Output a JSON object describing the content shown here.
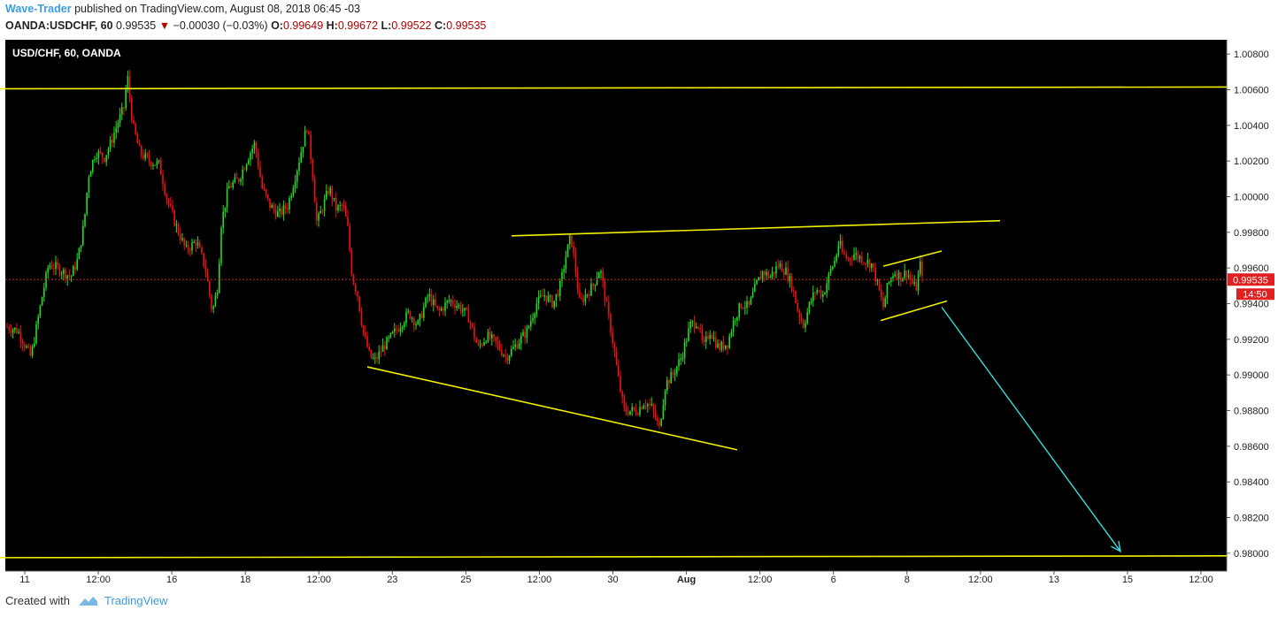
{
  "header": {
    "author": "Wave-Trader",
    "published_text": "published on TradingView.com, August 08, 2018 06:45 -03",
    "symbol": "OANDA:USDCHF, 60",
    "last": "0.99535",
    "change": "−0.00030 (−0.03%)",
    "o_label": "O:",
    "o_value": "0.99649",
    "h_label": "H:",
    "h_value": "0.99672",
    "l_label": "L:",
    "l_value": "0.99522",
    "c_label": "C:",
    "c_value": "0.99535"
  },
  "footer": {
    "created_with": "Created with",
    "brand": "TradingView"
  },
  "chart_data": {
    "type": "candlestick",
    "title": "USD/CHF, 60, OANDA",
    "ylim": [
      0.979,
      1.0088
    ],
    "y_ticks": [
      "1.00800",
      "1.00600",
      "1.00400",
      "1.00200",
      "1.00000",
      "0.99800",
      "0.99600",
      "0.99400",
      "0.99200",
      "0.99000",
      "0.98800",
      "0.98600",
      "0.98400",
      "0.98200",
      "0.98000"
    ],
    "x_ticks": [
      "11",
      "12:00",
      "16",
      "18",
      "12:00",
      "23",
      "25",
      "12:00",
      "30",
      "Aug",
      "12:00",
      "6",
      "8",
      "12:00",
      "13",
      "15",
      "12:00"
    ],
    "last_price_label": "0.99535",
    "countdown_label": "14:50",
    "last_price": 0.99535,
    "colors": {
      "background": "#000000",
      "up": "#22dd22",
      "down": "#ee1111",
      "trendline": "#f0f000",
      "arrow": "#33dddd",
      "price_line": "#cc2222"
    },
    "price_path": [
      [
        0,
        0.9928
      ],
      [
        20,
        0.9925
      ],
      [
        35,
        0.991
      ],
      [
        48,
        0.9945
      ],
      [
        55,
        0.9962
      ],
      [
        65,
        0.996
      ],
      [
        80,
        0.9955
      ],
      [
        88,
        0.9965
      ],
      [
        95,
        0.9985
      ],
      [
        100,
        1.0012
      ],
      [
        108,
        1.0025
      ],
      [
        118,
        1.0022
      ],
      [
        125,
        1.003
      ],
      [
        132,
        1.004
      ],
      [
        140,
        1.005
      ],
      [
        144,
        1.0068
      ],
      [
        150,
        1.004
      ],
      [
        158,
        1.0025
      ],
      [
        168,
        1.002
      ],
      [
        180,
        1.0018
      ],
      [
        188,
        1.0
      ],
      [
        198,
        0.9985
      ],
      [
        210,
        0.997
      ],
      [
        222,
        0.9975
      ],
      [
        232,
        0.996
      ],
      [
        240,
        0.9935
      ],
      [
        246,
        0.995
      ],
      [
        250,
        0.9985
      ],
      [
        258,
        1.0005
      ],
      [
        270,
        1.001
      ],
      [
        280,
        1.0022
      ],
      [
        288,
        1.003
      ],
      [
        296,
        1.0005
      ],
      [
        305,
        0.9995
      ],
      [
        315,
        0.999
      ],
      [
        325,
        0.9995
      ],
      [
        333,
        1.001
      ],
      [
        340,
        1.0025
      ],
      [
        347,
        1.004
      ],
      [
        353,
        1.0015
      ],
      [
        358,
        0.9985
      ],
      [
        365,
        0.9995
      ],
      [
        372,
        1.0005
      ],
      [
        380,
        0.9993
      ],
      [
        388,
        0.9995
      ],
      [
        393,
        0.9982
      ],
      [
        398,
        0.9955
      ],
      [
        404,
        0.9945
      ],
      [
        410,
        0.9925
      ],
      [
        418,
        0.991
      ],
      [
        424,
        0.9908
      ],
      [
        432,
        0.9915
      ],
      [
        440,
        0.992
      ],
      [
        452,
        0.9928
      ],
      [
        462,
        0.9935
      ],
      [
        472,
        0.9928
      ],
      [
        484,
        0.9945
      ],
      [
        495,
        0.9935
      ],
      [
        508,
        0.9942
      ],
      [
        520,
        0.9938
      ],
      [
        530,
        0.9932
      ],
      [
        540,
        0.9915
      ],
      [
        550,
        0.9922
      ],
      [
        560,
        0.9918
      ],
      [
        572,
        0.991
      ],
      [
        585,
        0.9918
      ],
      [
        596,
        0.9925
      ],
      [
        606,
        0.994
      ],
      [
        615,
        0.9945
      ],
      [
        625,
        0.994
      ],
      [
        633,
        0.995
      ],
      [
        640,
        0.9968
      ],
      [
        645,
        0.9978
      ],
      [
        650,
        0.996
      ],
      [
        655,
        0.994
      ],
      [
        662,
        0.9945
      ],
      [
        670,
        0.995
      ],
      [
        678,
        0.996
      ],
      [
        685,
        0.994
      ],
      [
        692,
        0.992
      ],
      [
        698,
        0.99
      ],
      [
        705,
        0.988
      ],
      [
        712,
        0.988
      ],
      [
        720,
        0.988
      ],
      [
        728,
        0.9885
      ],
      [
        736,
        0.9882
      ],
      [
        745,
        0.987
      ],
      [
        752,
        0.9895
      ],
      [
        760,
        0.99
      ],
      [
        770,
        0.991
      ],
      [
        780,
        0.9928
      ],
      [
        788,
        0.993
      ],
      [
        795,
        0.9915
      ],
      [
        802,
        0.9925
      ],
      [
        812,
        0.9915
      ],
      [
        822,
        0.9918
      ],
      [
        830,
        0.9932
      ],
      [
        838,
        0.994
      ],
      [
        846,
        0.9938
      ],
      [
        854,
        0.995
      ],
      [
        862,
        0.9958
      ],
      [
        870,
        0.9955
      ],
      [
        880,
        0.9962
      ],
      [
        888,
        0.9958
      ],
      [
        895,
        0.995
      ],
      [
        902,
        0.9935
      ],
      [
        908,
        0.9928
      ],
      [
        915,
        0.994
      ],
      [
        922,
        0.9948
      ],
      [
        930,
        0.9945
      ],
      [
        938,
        0.9958
      ],
      [
        944,
        0.9965
      ],
      [
        948,
        0.9975
      ],
      [
        952,
        0.9968
      ],
      [
        958,
        0.9965
      ],
      [
        965,
        0.9968
      ],
      [
        975,
        0.9965
      ],
      [
        985,
        0.9962
      ],
      [
        992,
        0.995
      ],
      [
        998,
        0.9938
      ],
      [
        1003,
        0.995
      ],
      [
        1010,
        0.9958
      ],
      [
        1018,
        0.9955
      ],
      [
        1025,
        0.9958
      ],
      [
        1030,
        0.9952
      ],
      [
        1035,
        0.9948
      ],
      [
        1040,
        0.9962
      ],
      [
        1044,
        0.99535
      ]
    ],
    "trendlines": [
      {
        "name": "resistance-top",
        "points": [
          [
            0,
            1.00605
          ],
          [
            1386,
            1.00615
          ]
        ]
      },
      {
        "name": "support-bottom",
        "points": [
          [
            0,
            0.97975
          ],
          [
            1386,
            0.97985
          ]
        ]
      },
      {
        "name": "triangle-upper",
        "points": [
          [
            578,
            0.9978
          ],
          [
            1130,
            0.99865
          ]
        ]
      },
      {
        "name": "triangle-lower",
        "points": [
          [
            415,
            0.99045
          ],
          [
            833,
            0.9858
          ]
        ]
      },
      {
        "name": "channel-upper",
        "points": [
          [
            998,
            0.9961
          ],
          [
            1064,
            0.99695
          ]
        ]
      },
      {
        "name": "channel-lower",
        "points": [
          [
            995,
            0.99305
          ],
          [
            1070,
            0.99415
          ]
        ]
      }
    ],
    "projection_arrow": {
      "points": [
        [
          1064,
          0.9938
        ],
        [
          1266,
          0.9801
        ]
      ]
    }
  }
}
